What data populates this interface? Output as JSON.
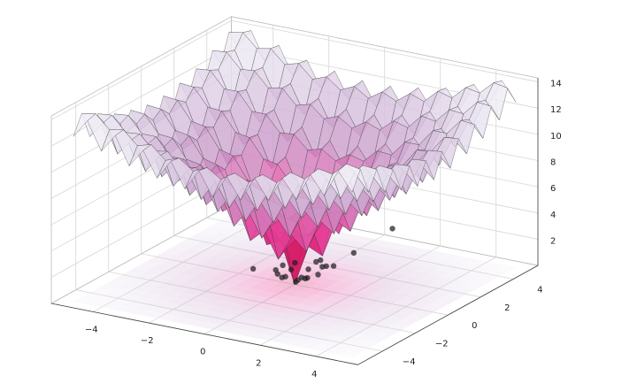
{
  "chart_data": {
    "type": "surface3d",
    "x": [
      -5,
      -4.5,
      -4,
      -3.5,
      -3,
      -2.5,
      -2,
      -1.5,
      -1,
      -0.5,
      0,
      0.5,
      1,
      1.5,
      2,
      2.5,
      3,
      3.5,
      4,
      4.5,
      5
    ],
    "y": [
      -5,
      -4.5,
      -4,
      -3.5,
      -3,
      -2.5,
      -2,
      -1.5,
      -1,
      -0.5,
      0,
      0.5,
      1,
      1.5,
      2,
      2.5,
      3,
      3.5,
      4,
      4.5,
      5
    ],
    "z": [
      [
        12.6,
        14,
        11.9,
        13.3,
        11.2,
        12.6,
        10.7,
        12.2,
        10.3,
        11.9,
        10.1,
        11.9,
        10.3,
        12.2,
        10.7,
        12.6,
        11.2,
        13.3,
        11.9,
        14,
        12.6
      ],
      [
        14,
        14.2,
        13.2,
        13.4,
        12.4,
        12.7,
        11.7,
        12.1,
        11.3,
        11.8,
        11.1,
        11.8,
        11.3,
        12.1,
        11.7,
        12.7,
        12.4,
        13.4,
        13.2,
        14.2,
        14
      ],
      [
        11.9,
        13.2,
        11,
        12.3,
        10.1,
        11.5,
        9.4,
        10.8,
        8.8,
        10.4,
        8.6,
        10.4,
        8.8,
        10.8,
        9.4,
        11.5,
        10.1,
        12.3,
        11,
        13.2,
        11.9
      ],
      [
        13.3,
        13.4,
        12.3,
        12.4,
        11.3,
        11.5,
        10.4,
        10.7,
        9.8,
        10.2,
        9.5,
        10.2,
        9.8,
        10.7,
        10.4,
        11.5,
        11.3,
        12.4,
        12.3,
        13.4,
        13.3
      ],
      [
        11.2,
        12.4,
        10.1,
        11.3,
        9,
        10.2,
        8,
        9.3,
        7.2,
        8.7,
        6.9,
        8.7,
        7.2,
        9.3,
        8,
        10.2,
        9,
        11.3,
        10.1,
        12.4,
        11.2
      ],
      [
        12.6,
        12.7,
        11.5,
        11.5,
        10.2,
        10.2,
        9,
        9.1,
        8.1,
        8.4,
        7.7,
        8.4,
        8.1,
        9.1,
        9,
        10.2,
        10.2,
        11.5,
        11.5,
        12.7,
        12.6
      ],
      [
        10.7,
        11.7,
        9.4,
        10.4,
        8,
        9,
        6.6,
        7.7,
        5.4,
        6.8,
        4.9,
        6.8,
        5.4,
        7.7,
        6.6,
        9,
        8,
        10.4,
        9.4,
        11.7,
        10.7
      ],
      [
        12.2,
        12.1,
        10.8,
        10.7,
        9.3,
        9.1,
        7.7,
        7.5,
        6.2,
        6.4,
        5.5,
        6.4,
        6.2,
        7.5,
        7.7,
        9.1,
        9.3,
        10.7,
        10.8,
        12.1,
        12.2
      ],
      [
        10.3,
        11.3,
        8.8,
        9.8,
        7.2,
        8.1,
        5.4,
        6.2,
        3.6,
        4.6,
        2.6,
        4.6,
        3.6,
        6.2,
        5.4,
        8.1,
        7.2,
        9.8,
        8.8,
        11.3,
        10.3
      ],
      [
        11.9,
        11.8,
        10.4,
        10.2,
        8.7,
        8.4,
        6.8,
        6.4,
        4.6,
        4.3,
        3.1,
        4.3,
        4.6,
        6.4,
        6.8,
        8.4,
        8.7,
        10.2,
        10.4,
        11.8,
        11.9
      ],
      [
        10.1,
        11.1,
        8.6,
        9.5,
        6.9,
        7.7,
        4.9,
        5.5,
        2.6,
        3.1,
        0,
        3.1,
        2.6,
        5.5,
        4.9,
        7.7,
        6.9,
        9.5,
        8.6,
        11.1,
        10.1
      ],
      [
        11.9,
        11.8,
        10.4,
        10.2,
        8.7,
        8.4,
        6.8,
        6.4,
        4.6,
        4.3,
        3.1,
        4.3,
        4.6,
        6.4,
        6.8,
        8.4,
        8.7,
        10.2,
        10.4,
        11.8,
        11.9
      ],
      [
        10.3,
        11.3,
        8.8,
        9.8,
        7.2,
        8.1,
        5.4,
        6.2,
        3.6,
        4.6,
        2.6,
        4.6,
        3.6,
        6.2,
        5.4,
        8.1,
        7.2,
        9.8,
        8.8,
        11.3,
        10.3
      ],
      [
        12.2,
        12.1,
        10.8,
        10.7,
        9.3,
        9.1,
        7.7,
        7.5,
        6.2,
        6.4,
        5.5,
        6.4,
        6.2,
        7.5,
        7.7,
        9.1,
        9.3,
        10.7,
        10.8,
        12.1,
        12.2
      ],
      [
        10.7,
        11.7,
        9.4,
        10.4,
        8,
        9,
        6.6,
        7.7,
        5.4,
        6.8,
        4.9,
        6.8,
        5.4,
        7.7,
        6.6,
        9,
        8,
        10.4,
        9.4,
        11.7,
        10.7
      ],
      [
        12.6,
        12.7,
        11.5,
        11.5,
        10.2,
        10.2,
        9,
        9.1,
        8.1,
        8.4,
        7.7,
        8.4,
        8.1,
        9.1,
        9,
        10.2,
        10.2,
        11.5,
        11.5,
        12.7,
        12.6
      ],
      [
        11.2,
        12.4,
        10.1,
        11.3,
        9,
        10.2,
        8,
        9.3,
        7.2,
        8.7,
        6.9,
        8.7,
        7.2,
        9.3,
        8,
        10.2,
        9,
        11.3,
        10.1,
        12.4,
        11.2
      ],
      [
        13.3,
        13.4,
        12.3,
        12.4,
        11.3,
        11.5,
        10.4,
        10.7,
        9.8,
        10.2,
        9.5,
        10.2,
        9.8,
        10.7,
        10.4,
        11.5,
        11.3,
        12.4,
        12.3,
        13.4,
        13.3
      ],
      [
        11.9,
        13.2,
        11,
        12.3,
        10.1,
        11.5,
        9.4,
        10.8,
        8.8,
        10.4,
        8.6,
        10.4,
        8.8,
        10.8,
        9.4,
        11.5,
        10.1,
        12.3,
        11,
        13.2,
        11.9
      ],
      [
        14,
        14.2,
        13.2,
        13.4,
        12.4,
        12.7,
        11.7,
        12.1,
        11.3,
        11.8,
        11.1,
        11.8,
        11.3,
        12.1,
        11.7,
        12.7,
        12.4,
        13.4,
        13.2,
        14.2,
        14
      ],
      [
        12.6,
        14,
        11.9,
        13.3,
        11.2,
        12.6,
        10.7,
        12.2,
        10.3,
        11.9,
        10.1,
        11.9,
        10.3,
        12.2,
        10.7,
        12.6,
        11.2,
        13.3,
        11.9,
        14,
        12.6
      ]
    ],
    "colormap": [
      "#980043",
      "#ce1256",
      "#e7298a",
      "#df65b0",
      "#c994c7",
      "#d4b9da",
      "#e7e1ef",
      "#f7f4f9"
    ],
    "edge_color": "#3a3a3a",
    "scatter": {
      "x": [
        -0.6,
        -0.4,
        -0.3,
        0.1,
        -0.9,
        -0.2,
        0.2,
        0.4,
        0.4,
        0.5,
        0.7,
        0.9,
        0.9,
        1.3,
        0.6,
        -0.1,
        1.4,
        2.1,
        0.2,
        0,
        -0.5,
        0.3
      ],
      "y": [
        0.3,
        0.7,
        0.3,
        -0.1,
        -1,
        -0.7,
        0.5,
        0.9,
        0.1,
        -0.2,
        0.5,
        0.4,
        -0.1,
        1.4,
        -0.6,
        -0.6,
        0,
        2.4,
        -0.9,
        0.2,
        -0.3,
        0.8
      ],
      "z": [
        1,
        1,
        0.8,
        0.3,
        1.5,
        1.2,
        0.9,
        1.4,
        0.6,
        0.8,
        1.3,
        1.5,
        1.2,
        2,
        1.2,
        0.9,
        2,
        3.5,
        1.3,
        0.2,
        1.1,
        1.3
      ],
      "color": "#1e1e1e"
    },
    "xlim": [
      -5.5,
      5.5
    ],
    "ylim": [
      -5.5,
      5.5
    ],
    "zlim": [
      0,
      14.3
    ],
    "xticks": [
      {
        "value": -4,
        "label": "−4"
      },
      {
        "value": -2,
        "label": "−2"
      },
      0,
      2,
      4
    ],
    "yticks": [
      {
        "value": -4,
        "label": "−4"
      },
      {
        "value": -2,
        "label": "−2"
      },
      0,
      2,
      4
    ],
    "zticks": [
      2,
      4,
      6,
      8,
      10,
      12,
      14
    ],
    "grid": true
  }
}
